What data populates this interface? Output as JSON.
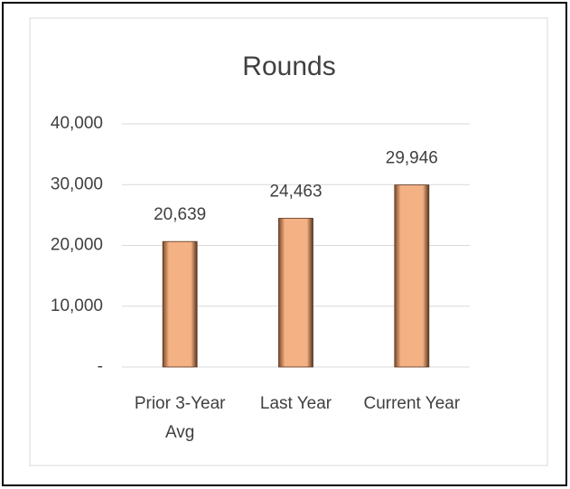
{
  "chart_data": {
    "type": "bar",
    "title": "Rounds",
    "categories": [
      "Prior 3-Year Avg",
      "Last Year",
      "Current Year"
    ],
    "values": [
      20639,
      24463,
      29946
    ],
    "value_labels": [
      "20,639",
      "24,463",
      "29,946"
    ],
    "color": "#f4b183",
    "ylim": [
      0,
      40000
    ],
    "yticks": [
      {
        "value": 0,
        "label": "-"
      },
      {
        "value": 10000,
        "label": "10,000"
      },
      {
        "value": 20000,
        "label": "20,000"
      },
      {
        "value": 30000,
        "label": "30,000"
      },
      {
        "value": 40000,
        "label": "40,000"
      }
    ],
    "grid": true
  }
}
